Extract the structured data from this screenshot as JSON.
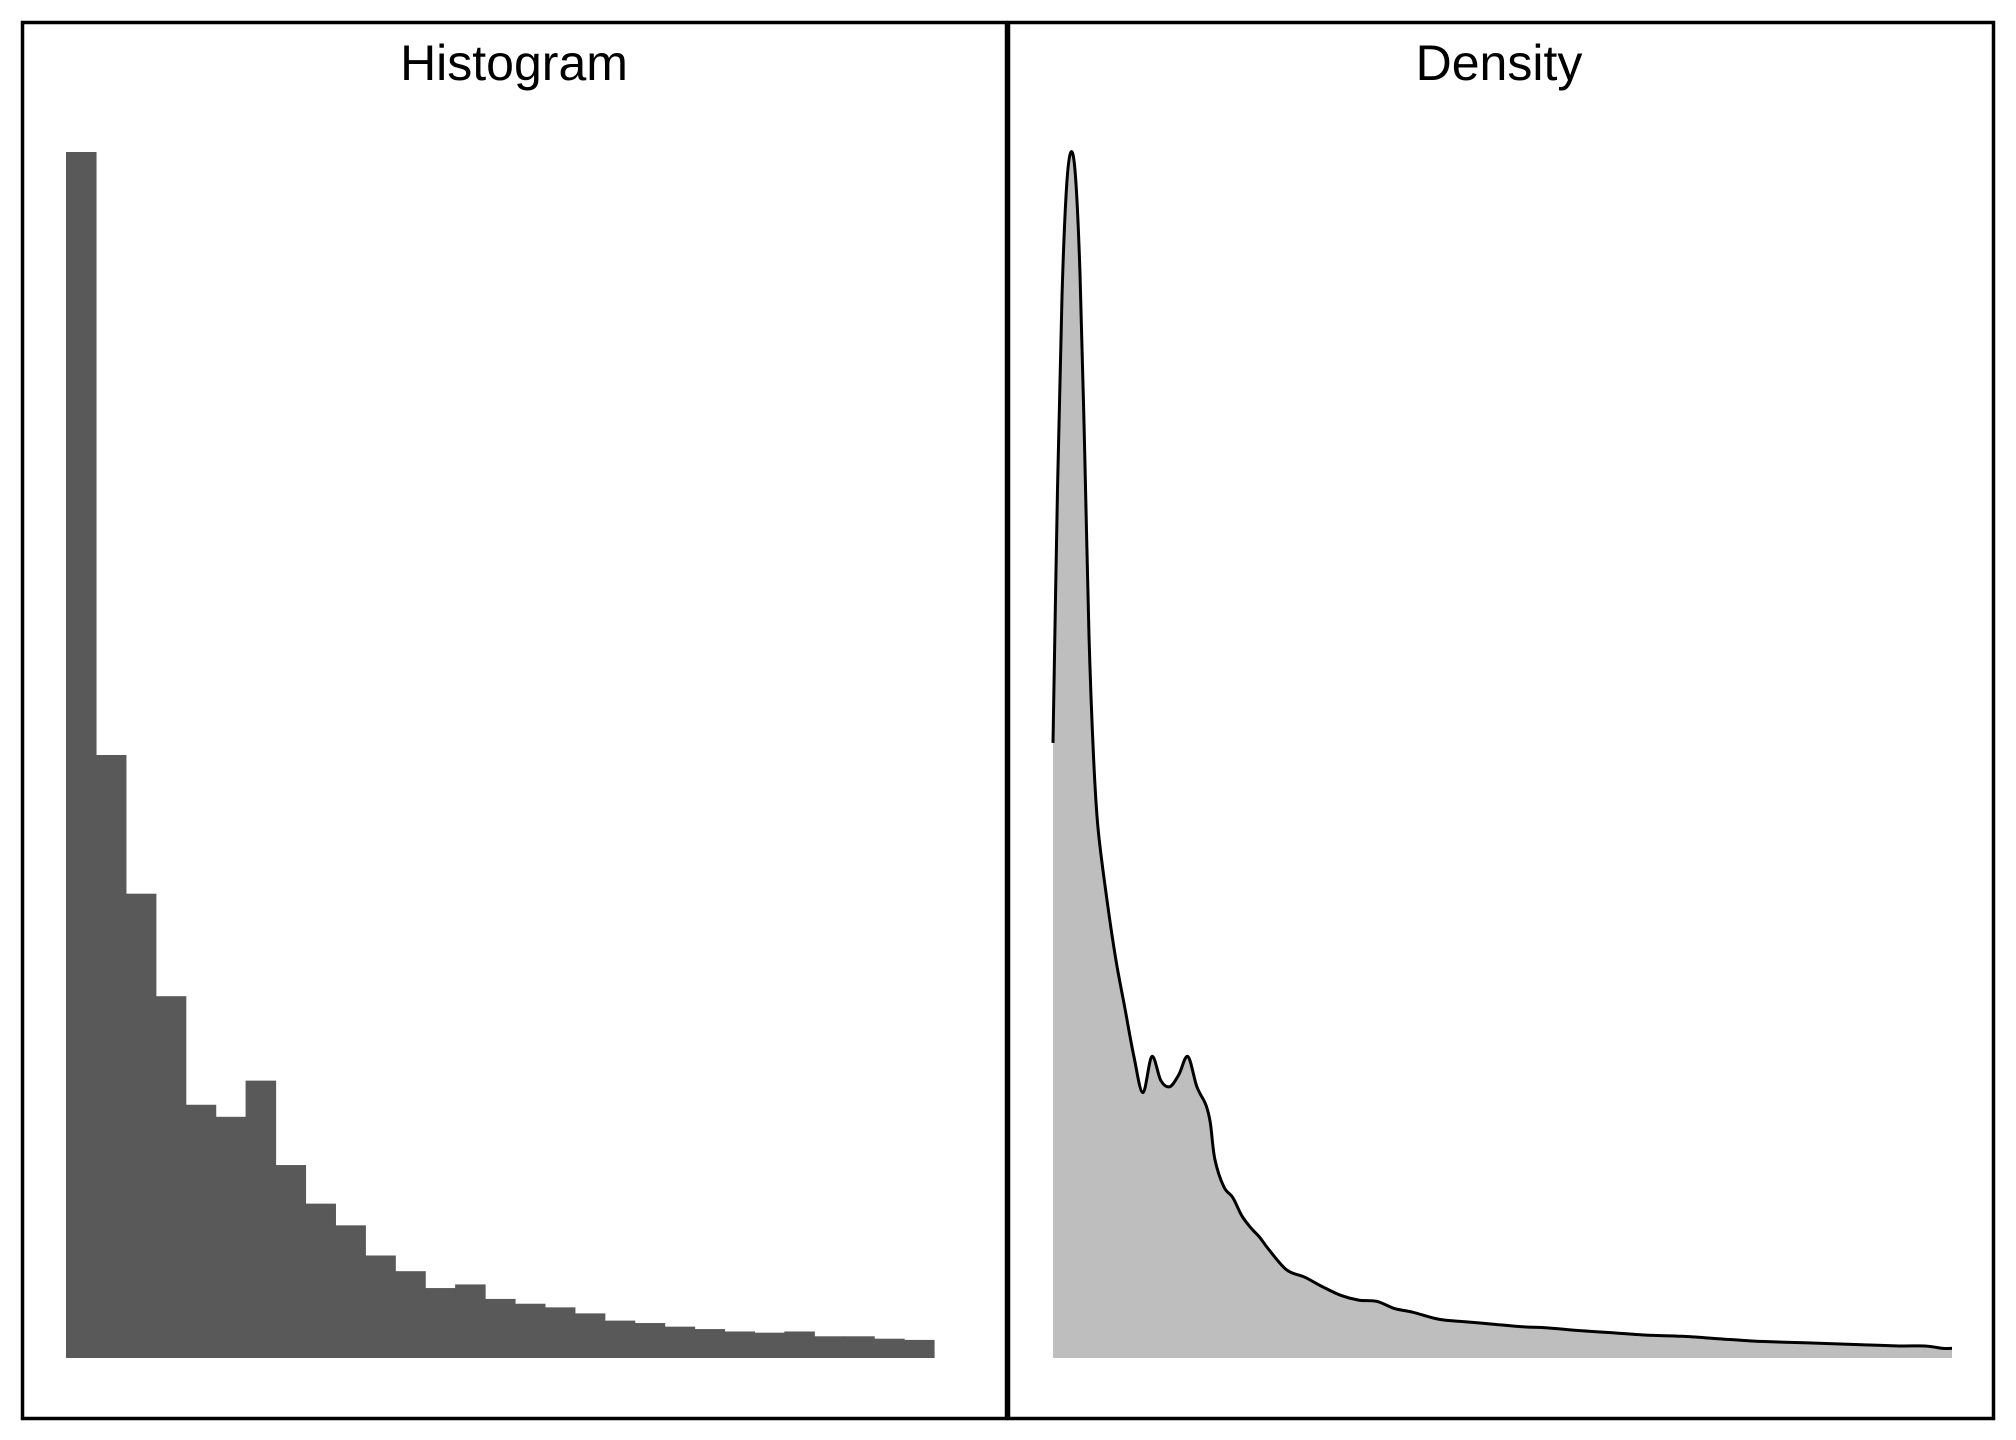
{
  "chart_data": [
    {
      "type": "bar",
      "title": "Histogram",
      "xlabel": "",
      "ylabel": "",
      "ylim": [
        0,
        100
      ],
      "bar_color": "#595959",
      "values": [
        100,
        50,
        38.5,
        30,
        21,
        20,
        23,
        16,
        12.8,
        11,
        8.5,
        7.2,
        5.8,
        6.1,
        4.9,
        4.5,
        4.2,
        3.7,
        3.1,
        2.9,
        2.6,
        2.4,
        2.2,
        2.1,
        2.2,
        1.8,
        1.8,
        1.6,
        1.5
      ]
    },
    {
      "type": "area",
      "title": "Density",
      "xlabel": "",
      "ylabel": "",
      "xlim": [
        0,
        1
      ],
      "ylim": [
        0,
        100
      ],
      "fill_color": "#bebebe",
      "line_color": "#000000",
      "x": [
        0,
        0.005,
        0.01,
        0.015,
        0.02,
        0.025,
        0.03,
        0.035,
        0.04,
        0.045,
        0.05,
        0.06,
        0.07,
        0.08,
        0.09,
        0.1,
        0.11,
        0.12,
        0.13,
        0.14,
        0.15,
        0.16,
        0.17,
        0.175,
        0.18,
        0.19,
        0.2,
        0.21,
        0.22,
        0.23,
        0.24,
        0.26,
        0.28,
        0.3,
        0.32,
        0.34,
        0.36,
        0.38,
        0.4,
        0.43,
        0.46,
        0.49,
        0.52,
        0.55,
        0.58,
        0.62,
        0.66,
        0.7,
        0.74,
        0.78,
        0.82,
        0.86,
        0.9,
        0.94,
        0.97,
        0.99,
        1.0
      ],
      "y": [
        51,
        72,
        88,
        97,
        100,
        98,
        90,
        76,
        60,
        50,
        44,
        38,
        33,
        29,
        25,
        22,
        25,
        23,
        22.5,
        23.5,
        25,
        22.5,
        21,
        19.5,
        16.5,
        14.2,
        13.3,
        11.8,
        10.8,
        10,
        9,
        7.3,
        6.7,
        5.9,
        5.2,
        4.8,
        4.7,
        4.1,
        3.8,
        3.2,
        3.0,
        2.8,
        2.6,
        2.5,
        2.3,
        2.1,
        1.9,
        1.8,
        1.6,
        1.4,
        1.3,
        1.2,
        1.1,
        1.0,
        1.0,
        0.8,
        0.8
      ]
    }
  ]
}
